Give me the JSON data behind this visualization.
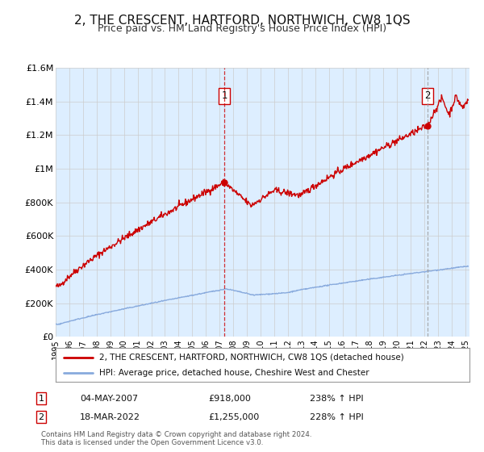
{
  "title": "2, THE CRESCENT, HARTFORD, NORTHWICH, CW8 1QS",
  "subtitle": "Price paid vs. HM Land Registry's House Price Index (HPI)",
  "title_fontsize": 11,
  "subtitle_fontsize": 9,
  "background_color": "#ffffff",
  "plot_bg_color": "#ddeeff",
  "grid_color": "#cccccc",
  "ylim": [
    0,
    1600000
  ],
  "xlim_start": 1995.0,
  "xlim_end": 2025.3,
  "yticks": [
    0,
    200000,
    400000,
    600000,
    800000,
    1000000,
    1200000,
    1400000,
    1600000
  ],
  "ytick_labels": [
    "£0",
    "£200K",
    "£400K",
    "£600K",
    "£800K",
    "£1M",
    "£1.2M",
    "£1.4M",
    "£1.6M"
  ],
  "xticks": [
    1995,
    1996,
    1997,
    1998,
    1999,
    2000,
    2001,
    2002,
    2003,
    2004,
    2005,
    2006,
    2007,
    2008,
    2009,
    2010,
    2011,
    2012,
    2013,
    2014,
    2015,
    2016,
    2017,
    2018,
    2019,
    2020,
    2021,
    2022,
    2023,
    2024,
    2025
  ],
  "property_color": "#cc0000",
  "hpi_color": "#88aadd",
  "marker_color": "#cc0000",
  "point1_x": 2007.34,
  "point1_y": 918000,
  "point2_x": 2022.21,
  "point2_y": 1255000,
  "vline1_x": 2007.34,
  "vline2_x": 2022.21,
  "annotation1_date": "04-MAY-2007",
  "annotation1_price": "£918,000",
  "annotation1_hpi": "238% ↑ HPI",
  "annotation2_date": "18-MAR-2022",
  "annotation2_price": "£1,255,000",
  "annotation2_hpi": "228% ↑ HPI",
  "legend_line1": "2, THE CRESCENT, HARTFORD, NORTHWICH, CW8 1QS (detached house)",
  "legend_line2": "HPI: Average price, detached house, Cheshire West and Chester",
  "footer1": "Contains HM Land Registry data © Crown copyright and database right 2024.",
  "footer2": "This data is licensed under the Open Government Licence v3.0."
}
